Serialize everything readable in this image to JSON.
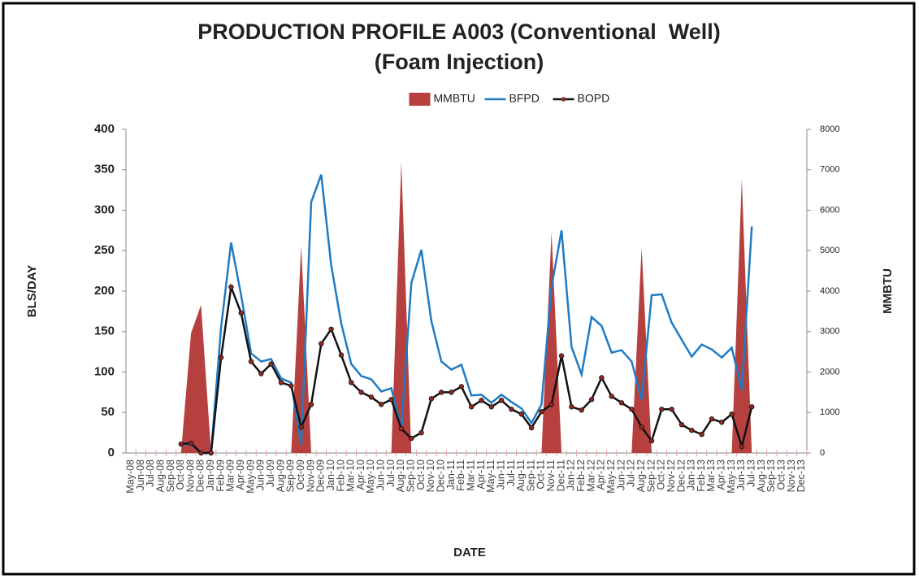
{
  "chart_data": {
    "type": "line",
    "title": "PRODUCTION PROFILE A003 (Conventional  Well)",
    "subtitle": "(Foam Injection)",
    "x_label": "DATE",
    "y_label": "BLS/DAY",
    "y2_label": "MMBTU",
    "categories": [
      "May-08",
      "Jun-08",
      "Jul-08",
      "Aug-08",
      "Sep-08",
      "Oct-08",
      "Nov-08",
      "Dec-08",
      "Jan-09",
      "Feb-09",
      "Mar-09",
      "Apr-09",
      "May-09",
      "Jun-09",
      "Jul-09",
      "Aug-09",
      "Sep-09",
      "Oct-09",
      "Nov-09",
      "Dec-09",
      "Jan-10",
      "Feb-10",
      "Mar-10",
      "Apr-10",
      "May-10",
      "Jun-10",
      "Jul-10",
      "Aug-10",
      "Sep-10",
      "Oct-10",
      "Nov-10",
      "Dec-10",
      "Jan-11",
      "Feb-11",
      "Mar-11",
      "Apr-11",
      "May-11",
      "Jun-11",
      "Jul-11",
      "Aug-11",
      "Sep-11",
      "Oct-11",
      "Nov-11",
      "Dec-11",
      "Jan-12",
      "Feb-12",
      "Mar-12",
      "Apr-12",
      "May-12",
      "Jun-12",
      "Jul-12",
      "Aug-12",
      "Sep-12",
      "Oct-12",
      "Nov-12",
      "Dec-12",
      "Jan-13",
      "Feb-13",
      "Mar-13",
      "Apr-13",
      "May-13",
      "Jun-13",
      "Jul-13",
      "Aug-13",
      "Sep-13",
      "Oct-13",
      "Nov-13",
      "Dec-13"
    ],
    "series": [
      {
        "name": "MMBTU",
        "type": "area",
        "axis": "y2",
        "color": "#b5403d",
        "values": [
          null,
          null,
          null,
          null,
          null,
          0,
          2960,
          3660,
          0,
          0,
          0,
          0,
          0,
          0,
          0,
          0,
          0,
          5120,
          0,
          0,
          0,
          0,
          0,
          0,
          0,
          0,
          0,
          7200,
          0,
          0,
          0,
          0,
          0,
          0,
          0,
          0,
          0,
          0,
          0,
          0,
          0,
          0,
          5460,
          0,
          0,
          0,
          0,
          0,
          0,
          0,
          0,
          5080,
          0,
          0,
          0,
          0,
          0,
          0,
          0,
          0,
          0,
          6780,
          0,
          null,
          null,
          null,
          null,
          null
        ]
      },
      {
        "name": "BFPD",
        "type": "line",
        "color": "#1f7bc4",
        "values": [
          null,
          null,
          null,
          null,
          null,
          10,
          11,
          0,
          0,
          155,
          260,
          195,
          123,
          113,
          116,
          92,
          87,
          10,
          310,
          344,
          232,
          160,
          110,
          95,
          91,
          76,
          80,
          30,
          210,
          251,
          163,
          113,
          103,
          109,
          71,
          72,
          62,
          72,
          63,
          55,
          37,
          60,
          205,
          275,
          131,
          97,
          168,
          157,
          124,
          127,
          113,
          66,
          195,
          196,
          161,
          140,
          119,
          134,
          128,
          118,
          130,
          78,
          280,
          null,
          null,
          null,
          null,
          null
        ]
      },
      {
        "name": "BOPD",
        "type": "line",
        "markers": true,
        "color": "#111111",
        "marker_color": "#8b2a22",
        "values": [
          null,
          null,
          null,
          null,
          null,
          11,
          12,
          0,
          0,
          118,
          205,
          173,
          113,
          98,
          110,
          87,
          83,
          32,
          60,
          135,
          153,
          121,
          87,
          75,
          69,
          60,
          66,
          30,
          18,
          25,
          67,
          75,
          75,
          82,
          57,
          65,
          57,
          65,
          54,
          48,
          31,
          51,
          60,
          120,
          57,
          53,
          66,
          93,
          70,
          62,
          54,
          32,
          15,
          54,
          54,
          35,
          28,
          23,
          42,
          38,
          48,
          8,
          57,
          null,
          null,
          null,
          null,
          null
        ]
      }
    ],
    "ylim": [
      0,
      400
    ],
    "yticks": [
      0,
      50,
      100,
      150,
      200,
      250,
      300,
      350,
      400
    ],
    "y2lim": [
      0,
      8000
    ],
    "y2ticks": [
      0,
      1000,
      2000,
      3000,
      4000,
      5000,
      6000,
      7000,
      8000
    ],
    "grid": false,
    "legend": "top"
  }
}
